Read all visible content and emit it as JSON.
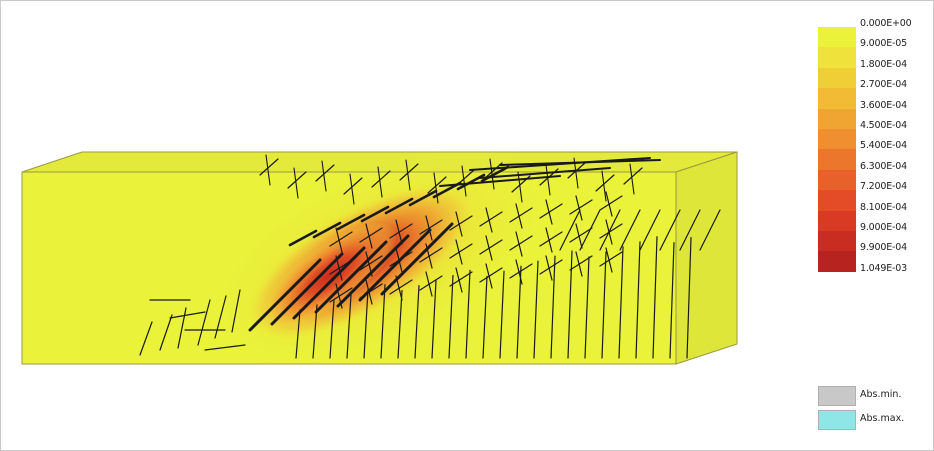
{
  "legend": {
    "labels": [
      "0.000E+00",
      "9.000E-05",
      "1.800E-04",
      "2.700E-04",
      "3.600E-04",
      "4.500E-04",
      "5.400E-04",
      "6.300E-04",
      "7.200E-04",
      "8.100E-04",
      "9.000E-04",
      "9.900E-04",
      "1.049E-03"
    ],
    "colors": [
      "#ecf23a",
      "#efe23a",
      "#f0cf36",
      "#f1bb33",
      "#f0a532",
      "#ef8f2f",
      "#ec772c",
      "#e8612a",
      "#e34c27",
      "#d83a24",
      "#c92c21",
      "#b72420",
      "#a71d1d"
    ]
  },
  "extremes": {
    "abs_min": {
      "label": "Abs.min.",
      "color": "#c8c8c8"
    },
    "abs_max": {
      "label": "Abs.max.",
      "color": "#8fe6e6"
    }
  },
  "model": {
    "base_color": "#eaf23a",
    "crack_color": "#1a1a1a"
  }
}
